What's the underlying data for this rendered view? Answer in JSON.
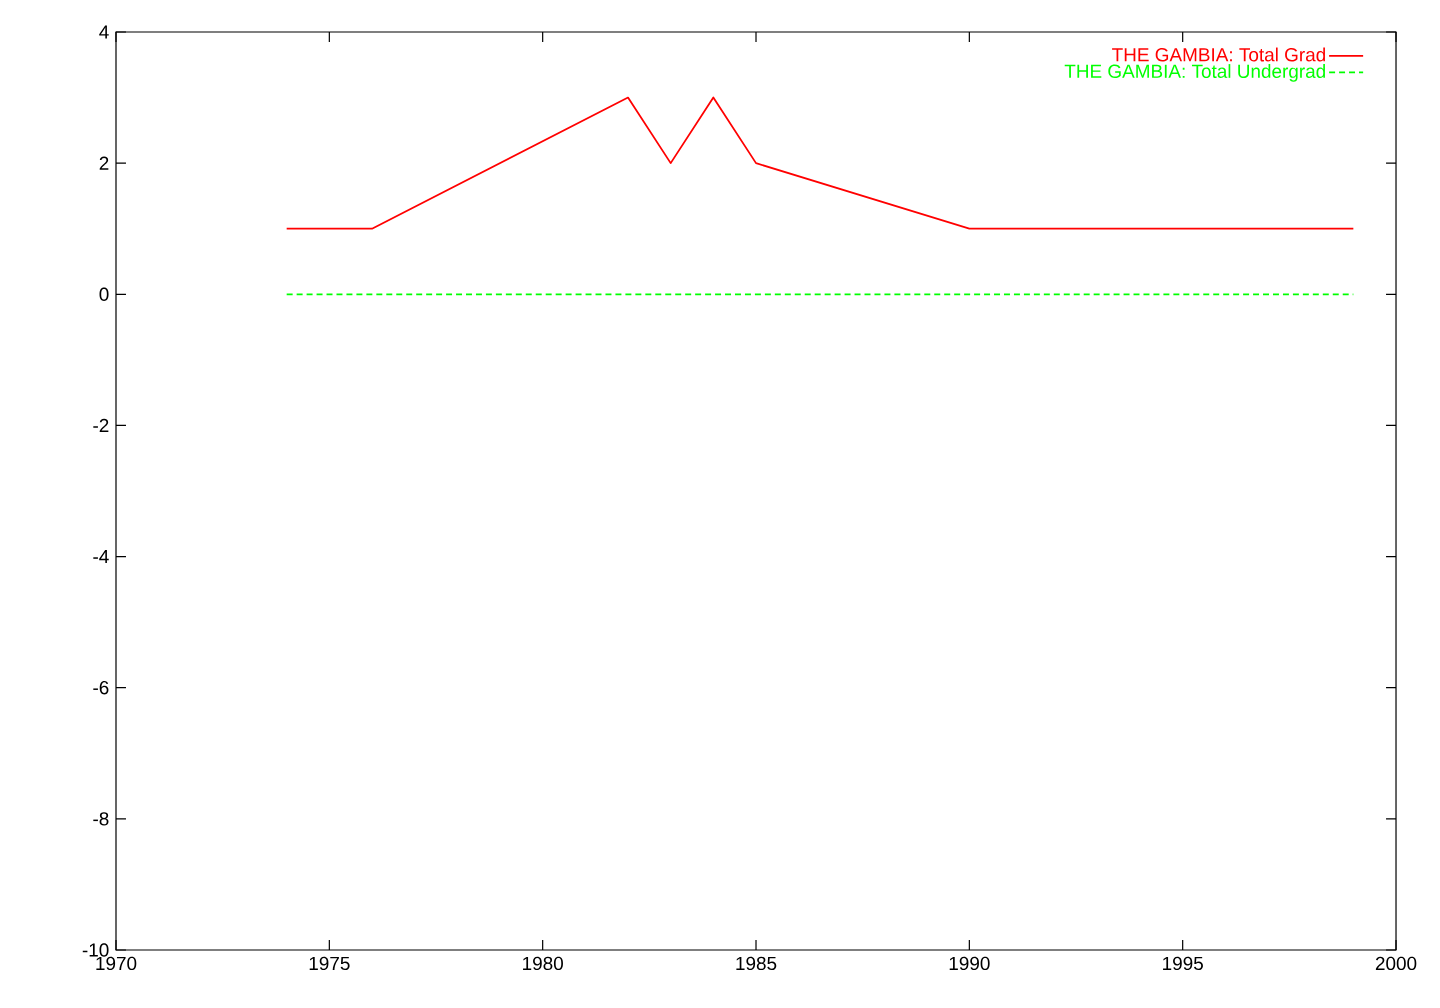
{
  "chart_data": {
    "type": "line",
    "series": [
      {
        "name": "THE GAMBIA: Total Grad",
        "color": "#ff0000",
        "line_style": "solid",
        "x": [
          1974,
          1976,
          1982,
          1983,
          1984,
          1985,
          1990,
          1999
        ],
        "values": [
          1,
          1,
          3,
          2,
          3,
          2,
          1,
          1
        ]
      },
      {
        "name": "THE GAMBIA: Total Undergrad",
        "color": "#00ff00",
        "line_style": "dashed",
        "x": [
          1974,
          1999
        ],
        "values": [
          0,
          0
        ]
      }
    ],
    "xlim": [
      1970,
      2000
    ],
    "xticks": [
      1970,
      1975,
      1980,
      1985,
      1990,
      1995,
      2000
    ],
    "ylim": [
      -10,
      4
    ],
    "yticks": [
      -10,
      -8,
      -6,
      -4,
      -2,
      0,
      2,
      4
    ],
    "grid": false,
    "legend": "top right",
    "marker": "none"
  }
}
